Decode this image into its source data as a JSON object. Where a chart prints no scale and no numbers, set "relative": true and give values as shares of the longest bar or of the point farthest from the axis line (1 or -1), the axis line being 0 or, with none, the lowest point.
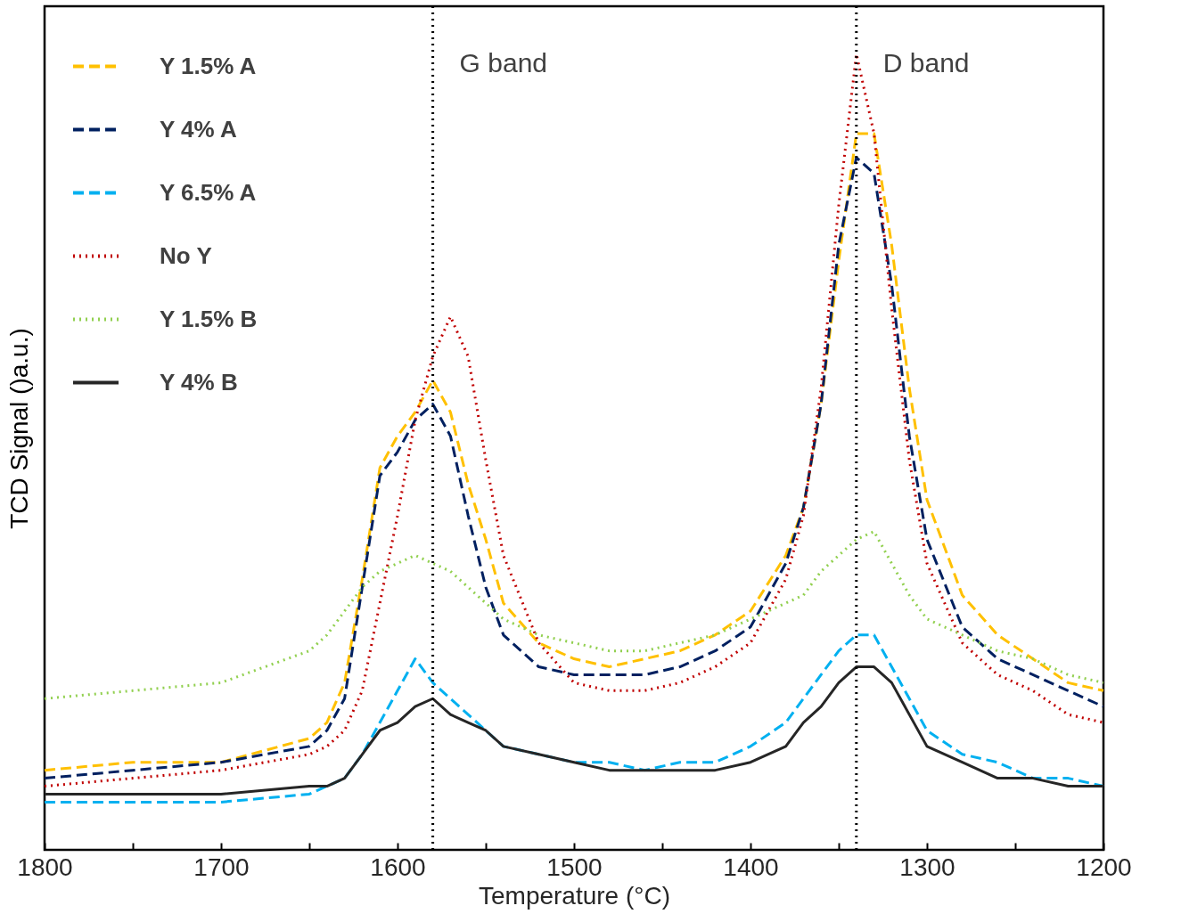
{
  "chart_data": {
    "type": "line",
    "relative": true,
    "xlabel": "Temperature (°C)",
    "ylabel": "TCD Signal ()a.u.)",
    "x": [
      1800,
      1750,
      1700,
      1650,
      1640,
      1630,
      1620,
      1610,
      1600,
      1590,
      1580,
      1570,
      1560,
      1550,
      1540,
      1520,
      1500,
      1480,
      1460,
      1440,
      1420,
      1400,
      1380,
      1370,
      1360,
      1350,
      1340,
      1330,
      1320,
      1310,
      1300,
      1280,
      1260,
      1240,
      1220,
      1200
    ],
    "xlim": [
      1800,
      1200
    ],
    "xticks": [
      1800,
      {
        "value": 1750,
        "label": null
      },
      1700,
      {
        "value": 1650,
        "label": null
      },
      1600,
      {
        "value": 1550,
        "label": null
      },
      1500,
      {
        "value": 1450,
        "label": null
      },
      1400,
      {
        "value": 1350,
        "label": null
      },
      1300,
      {
        "value": 1250,
        "label": null
      },
      1200
    ],
    "series": [
      {
        "name": "Y 1.5% A",
        "color": "#ffc000",
        "line_style": "dashed",
        "values": [
          0.1,
          0.11,
          0.11,
          0.14,
          0.16,
          0.21,
          0.34,
          0.48,
          0.52,
          0.55,
          0.59,
          0.55,
          0.46,
          0.39,
          0.31,
          0.26,
          0.24,
          0.23,
          0.24,
          0.25,
          0.27,
          0.3,
          0.37,
          0.43,
          0.56,
          0.74,
          0.9,
          0.9,
          0.76,
          0.58,
          0.44,
          0.32,
          0.27,
          0.24,
          0.21,
          0.2
        ]
      },
      {
        "name": "Y 4% A",
        "color": "#002060",
        "line_style": "dashed",
        "values": [
          0.09,
          0.1,
          0.11,
          0.13,
          0.15,
          0.19,
          0.33,
          0.47,
          0.5,
          0.54,
          0.56,
          0.52,
          0.42,
          0.33,
          0.27,
          0.23,
          0.22,
          0.22,
          0.22,
          0.23,
          0.25,
          0.28,
          0.36,
          0.43,
          0.56,
          0.76,
          0.87,
          0.85,
          0.71,
          0.52,
          0.39,
          0.28,
          0.24,
          0.22,
          0.2,
          0.18
        ]
      },
      {
        "name": "Y 6.5% A",
        "color": "#00b0f0",
        "line_style": "dashed",
        "values": [
          0.06,
          0.06,
          0.06,
          0.07,
          0.08,
          0.09,
          0.12,
          0.16,
          0.2,
          0.24,
          0.21,
          0.19,
          0.17,
          0.15,
          0.13,
          0.12,
          0.11,
          0.11,
          0.1,
          0.11,
          0.11,
          0.13,
          0.16,
          0.19,
          0.22,
          0.25,
          0.27,
          0.27,
          0.23,
          0.19,
          0.15,
          0.12,
          0.11,
          0.09,
          0.09,
          0.08
        ]
      },
      {
        "name": "No Y",
        "color": "#c00000",
        "line_style": "dotted",
        "values": [
          0.08,
          0.09,
          0.1,
          0.12,
          0.13,
          0.15,
          0.2,
          0.31,
          0.42,
          0.54,
          0.62,
          0.67,
          0.62,
          0.49,
          0.37,
          0.26,
          0.21,
          0.2,
          0.2,
          0.21,
          0.23,
          0.26,
          0.34,
          0.42,
          0.58,
          0.81,
          1,
          0.9,
          0.68,
          0.49,
          0.36,
          0.26,
          0.22,
          0.2,
          0.17,
          0.16
        ]
      },
      {
        "name": "Y 1.5% B",
        "color": "#92d050",
        "line_style": "dotted",
        "values": [
          0.19,
          0.2,
          0.21,
          0.25,
          0.27,
          0.3,
          0.33,
          0.35,
          0.36,
          0.37,
          0.36,
          0.35,
          0.33,
          0.31,
          0.29,
          0.27,
          0.26,
          0.25,
          0.25,
          0.26,
          0.27,
          0.29,
          0.31,
          0.32,
          0.35,
          0.37,
          0.39,
          0.4,
          0.36,
          0.32,
          0.29,
          0.27,
          0.25,
          0.24,
          0.22,
          0.21
        ]
      },
      {
        "name": "Y 4% B",
        "color": "#262626",
        "line_style": "solid",
        "values": [
          0.07,
          0.07,
          0.07,
          0.08,
          0.08,
          0.09,
          0.12,
          0.15,
          0.16,
          0.18,
          0.19,
          0.17,
          0.16,
          0.15,
          0.13,
          0.12,
          0.11,
          0.1,
          0.1,
          0.1,
          0.1,
          0.11,
          0.13,
          0.16,
          0.18,
          0.21,
          0.23,
          0.23,
          0.21,
          0.17,
          0.13,
          0.11,
          0.09,
          0.09,
          0.08,
          0.08
        ]
      }
    ],
    "ref_lines": [
      {
        "axis": "x",
        "value": 1580,
        "line_style": "dotted",
        "color": "#000000",
        "label": "G band"
      },
      {
        "axis": "x",
        "value": 1340,
        "line_style": "dotted",
        "color": "#000000",
        "label": "D band"
      }
    ],
    "legend": "top left",
    "grid": false
  }
}
